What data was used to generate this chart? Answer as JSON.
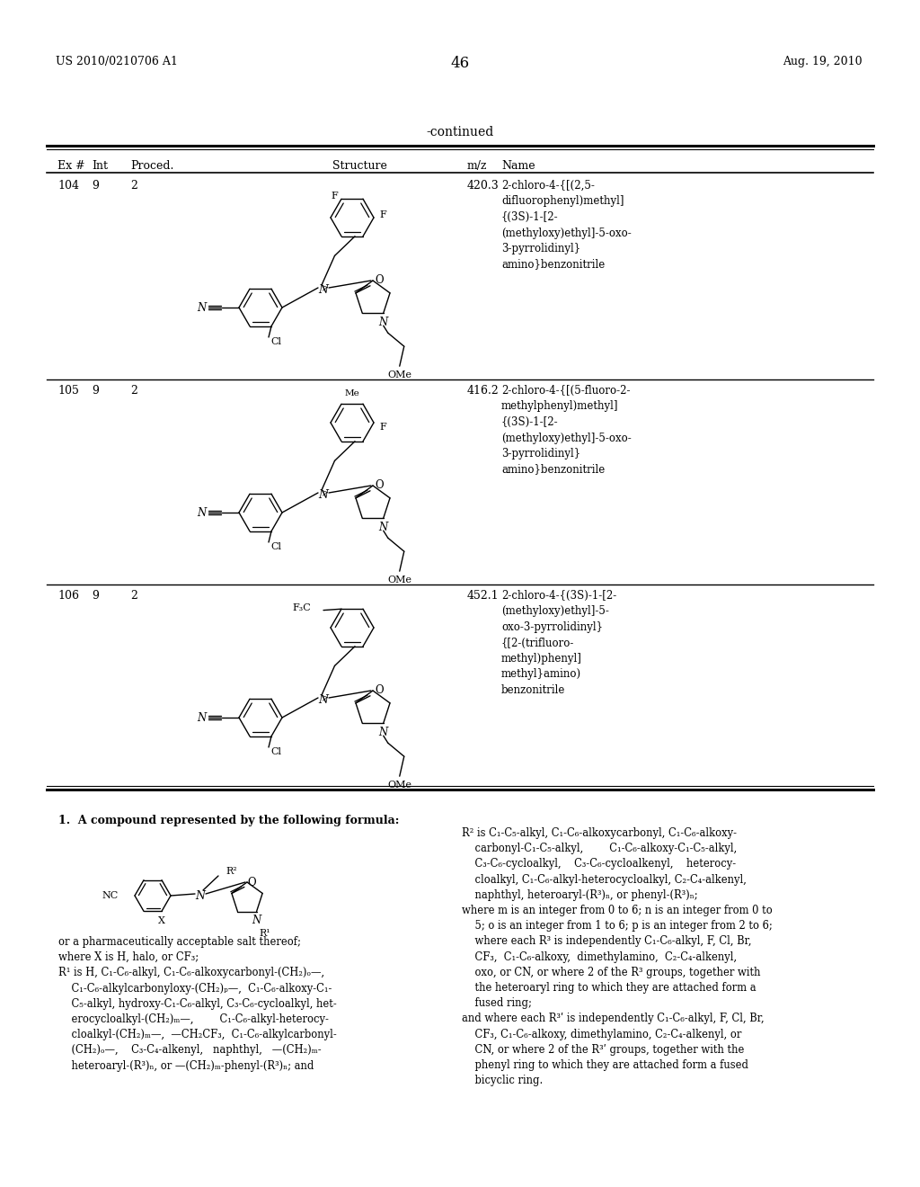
{
  "page_number": "46",
  "patent_number": "US 2010/0210706 A1",
  "patent_date": "Aug. 19, 2010",
  "continued_label": "-continued",
  "table_headers": [
    "Ex #",
    "Int",
    "Proced.",
    "Structure",
    "m/z",
    "Name"
  ],
  "rows": [
    {
      "ex": "104",
      "int": "9",
      "proced": "2",
      "mz": "420.3",
      "name": "2-chloro-4-{[(2,5-\ndifluorophenyl)methyl]\n{(3S)-1-[2-\n(methyloxy)ethyl]-5-oxo-\n3-pyrrolidinyl}\namino}benzonitrile",
      "top_label": "F",
      "top_label2": "F",
      "top_extra": null
    },
    {
      "ex": "105",
      "int": "9",
      "proced": "2",
      "mz": "416.2",
      "name": "2-chloro-4-{[(5-fluoro-2-\nmethylphenyl)methyl]\n{(3S)-1-[2-\n(methyloxy)ethyl]-5-oxo-\n3-pyrrolidinyl}\namino}benzonitrile",
      "top_label": "Me",
      "top_label2": "F",
      "top_extra": null
    },
    {
      "ex": "106",
      "int": "9",
      "proced": "2",
      "mz": "452.1",
      "name": "2-chloro-4-{(3S)-1-[2-\n(methyloxy)ethyl]-5-\noxo-3-pyrrolidinyl}\n{[2-(trifluoro-\nmethyl)phenyl]\nmethyl}amino)\nbenzonitrile",
      "top_label": "F3C",
      "top_label2": null,
      "top_extra": null
    }
  ],
  "claim_title": "1.  A compound represented by the following formula:",
  "claim_text_left": "or a pharmaceutically acceptable salt thereof;\nwhere X is H, halo, or CF₃;\nR¹ is H, C₁-C₆-alkyl, C₁-C₆-alkoxycarbonyl-(CH₂)ₒ—,\n    C₁-C₆-alkylcarbonyloxy-(CH₂)ₚ—,  C₁-C₆-alkoxy-C₁-\n    C₅-alkyl, hydroxy-C₁-C₆-alkyl, C₃-C₆-cycloalkyl, het-\n    erocycloalkyl-(CH₂)ₘ—,        C₁-C₆-alkyl-heterocy-\n    cloalkyl-(CH₂)ₘ—,  —CH₂CF₃,  C₁-C₆-alkylcarbonyl-\n    (CH₂)ₒ—,    C₃-C₄-alkenyl,   naphthyl,   —(CH₂)ₘ-\n    heteroaryl-(R³)ₙ, or —(CH₂)ₘ-phenyl-(R³)ₙ; and",
  "claim_text_right": "R² is C₁-C₅-alkyl, C₁-C₆-alkoxycarbonyl, C₁-C₆-alkoxy-\n    carbonyl-C₁-C₅-alkyl,        C₁-C₆-alkoxy-C₁-C₅-alkyl,\n    C₃-C₆-cycloalkyl,    C₃-C₆-cycloalkenyl,    heterocy-\n    cloalkyl, C₁-C₆-alkyl-heterocycloalkyl, C₂-C₄-alkenyl,\n    naphthyl, heteroaryl-(R³)ₙ, or phenyl-(R³)ₙ;\nwhere m is an integer from 0 to 6; n is an integer from 0 to\n    5; o is an integer from 1 to 6; p is an integer from 2 to 6;\n    where each R³ is independently C₁-C₆-alkyl, F, Cl, Br,\n    CF₃,  C₁-C₆-alkoxy,  dimethylamino,  C₂-C₄-alkenyl,\n    oxo, or CN, or where 2 of the R³ groups, together with\n    the heteroaryl ring to which they are attached form a\n    fused ring;\nand where each R³ʹ is independently C₁-C₆-alkyl, F, Cl, Br,\n    CF₃, C₁-C₆-alkoxy, dimethylamino, C₂-C₄-alkenyl, or\n    CN, or where 2 of the R³ʹ groups, together with the\n    phenyl ring to which they are attached form a fused\n    bicyclic ring."
}
